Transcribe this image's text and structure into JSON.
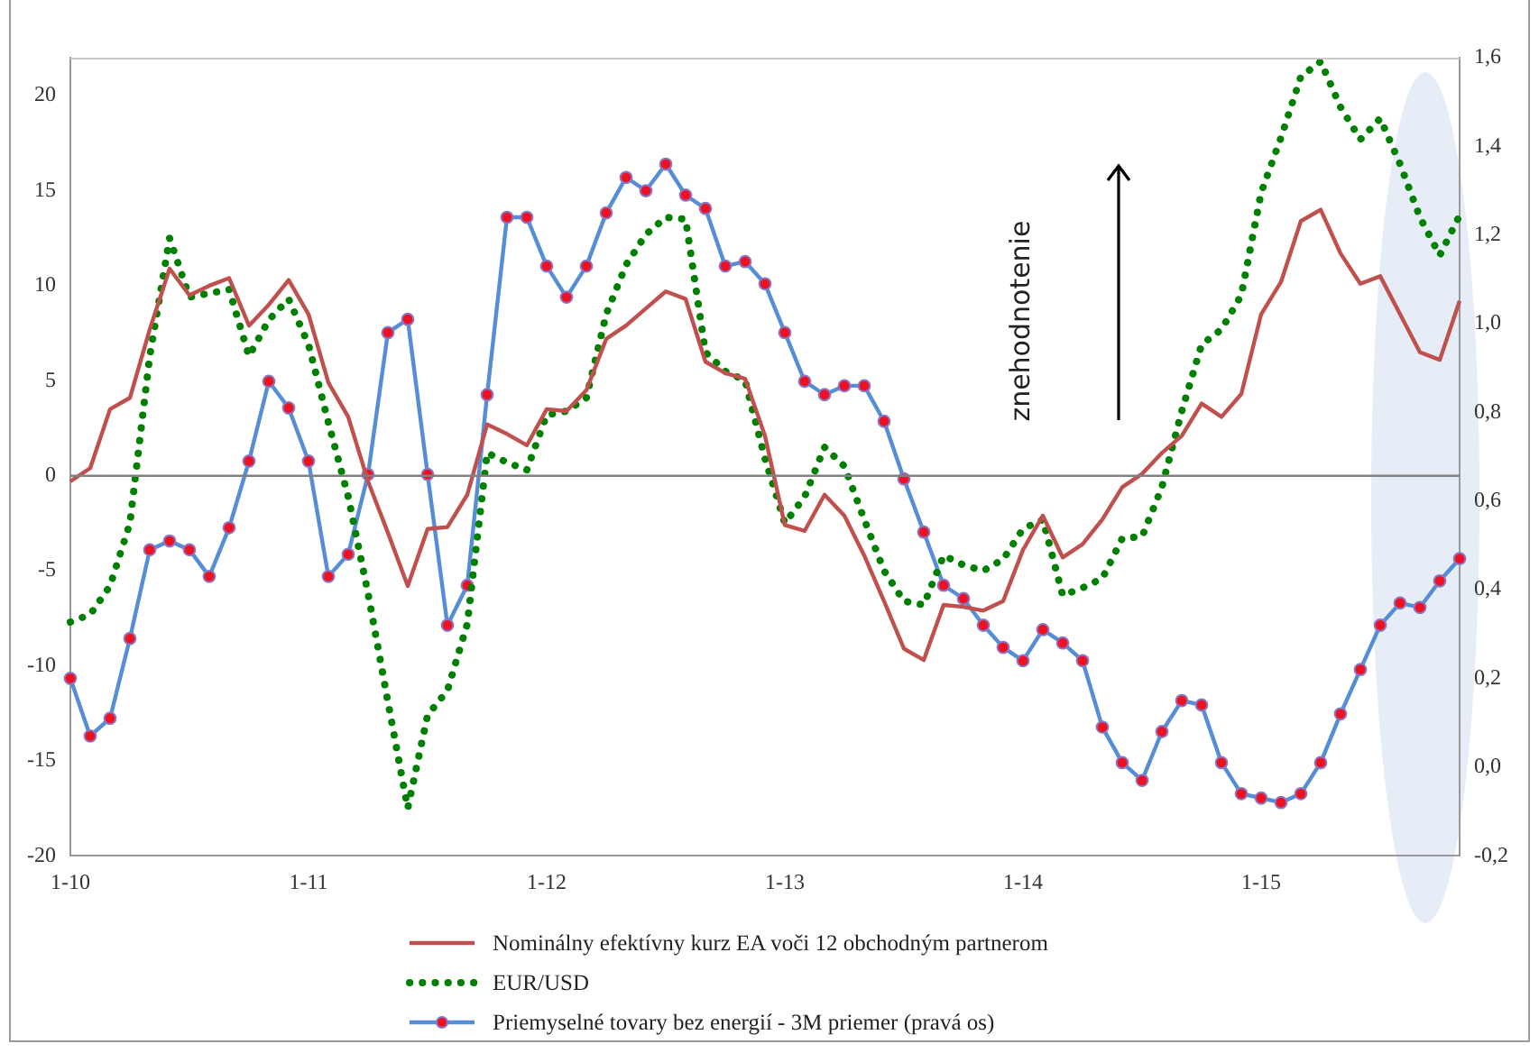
{
  "chart_data": {
    "type": "line",
    "categories": [
      "1-10",
      null,
      null,
      null,
      null,
      null,
      null,
      null,
      null,
      null,
      null,
      null,
      "1-11",
      null,
      null,
      null,
      null,
      null,
      null,
      null,
      null,
      null,
      null,
      null,
      "1-12",
      null,
      null,
      null,
      null,
      null,
      null,
      null,
      null,
      null,
      null,
      null,
      "1-13",
      null,
      null,
      null,
      null,
      null,
      null,
      null,
      null,
      null,
      null,
      null,
      "1-14",
      null,
      null,
      null,
      null,
      null,
      null,
      null,
      null,
      null,
      null,
      null,
      "1-15",
      null,
      null,
      null,
      null,
      null,
      null,
      null,
      null,
      null,
      null
    ],
    "series": [
      {
        "name": "Nominálny efektívny kurz EA voči 12 obchodným partnerom",
        "color": "#c0504d",
        "line_style": "solid",
        "marker": "none",
        "values": [
          -0.3,
          0.4,
          3.5,
          4.1,
          7.7,
          10.9,
          9.5,
          10.0,
          10.4,
          7.9,
          9.0,
          10.3,
          8.5,
          4.9,
          3.1,
          -0.3,
          -3.0,
          -5.8,
          -2.8,
          -2.7,
          -1.0,
          2.7,
          2.2,
          1.6,
          3.5,
          3.4,
          4.5,
          7.2,
          7.9,
          8.8,
          9.7,
          9.3,
          6.0,
          5.4,
          5.1,
          2.1,
          -2.6,
          -2.9,
          -1.0,
          -2.1,
          -4.2,
          -6.6,
          -9.1,
          -9.7,
          -6.8,
          -6.9,
          -7.1,
          -6.6,
          -3.9,
          -2.1,
          -4.3,
          -3.6,
          -2.3,
          -0.6,
          0.1,
          1.2,
          2.1,
          3.8,
          3.1,
          4.3,
          8.5,
          10.2,
          13.4,
          14.0,
          11.7,
          10.1,
          10.5,
          8.5,
          6.5,
          6.1,
          9.2
        ]
      },
      {
        "name": "EUR/USD",
        "color": "#008000",
        "line_style": "dotted",
        "marker": "none",
        "values": [
          -7.7,
          -7.3,
          -5.8,
          -2.5,
          6.3,
          12.5,
          9.4,
          9.6,
          9.8,
          6.3,
          8.2,
          9.3,
          6.9,
          2.8,
          -1.1,
          -6.2,
          -11.9,
          -17.5,
          -12.6,
          -11.3,
          -7.8,
          1.2,
          0.7,
          0.3,
          3.2,
          3.4,
          4.1,
          8.5,
          11.1,
          12.7,
          13.6,
          13.5,
          6.5,
          5.5,
          5.0,
          0.9,
          -2.5,
          -1.1,
          1.5,
          0.5,
          -2.3,
          -5.0,
          -6.6,
          -6.8,
          -4.2,
          -4.7,
          -5.0,
          -4.4,
          -2.8,
          -2.3,
          -6.3,
          -5.9,
          -5.4,
          -3.3,
          -3.2,
          -0.6,
          3.4,
          6.9,
          7.7,
          9.5,
          14.9,
          17.8,
          21.0,
          21.8,
          19.4,
          17.7,
          18.8,
          16.4,
          13.6,
          11.6,
          13.7
        ]
      },
      {
        "name": "Priemyselné tovary bez energií - 3M priemer (pravá os)",
        "color": "#558ed5",
        "axis": "y2",
        "line_style": "solid",
        "marker": "circle",
        "values": [
          0.2,
          0.07,
          0.11,
          0.29,
          0.49,
          0.51,
          0.49,
          0.43,
          0.54,
          0.69,
          0.87,
          0.81,
          0.69,
          0.43,
          0.48,
          0.66,
          0.98,
          1.01,
          0.66,
          0.32,
          0.41,
          0.84,
          1.24,
          1.24,
          1.13,
          1.06,
          1.13,
          1.25,
          1.33,
          1.3,
          1.36,
          1.29,
          1.26,
          1.13,
          1.14,
          1.09,
          0.98,
          0.87,
          0.84,
          0.86,
          0.86,
          0.78,
          0.65,
          0.53,
          0.41,
          0.38,
          0.32,
          0.27,
          0.24,
          0.31,
          0.28,
          0.24,
          0.09,
          0.01,
          -0.03,
          0.08,
          0.15,
          0.14,
          0.01,
          -0.06,
          -0.07,
          -0.08,
          -0.06,
          0.01,
          0.12,
          0.22,
          0.32,
          0.37,
          0.36,
          0.42,
          0.47
        ]
      }
    ],
    "ylim": [
      -20,
      22
    ],
    "yticks": [
      -20,
      -15,
      -10,
      -5,
      0,
      5,
      10,
      15,
      20
    ],
    "y2lim": [
      -0.2,
      1.6
    ],
    "y2ticks": [
      {
        "value": -0.2,
        "label": "-0,2"
      },
      {
        "value": 0,
        "label": "0,0"
      },
      {
        "value": 0.2,
        "label": "0,2"
      },
      {
        "value": 0.4,
        "label": "0,4"
      },
      {
        "value": 0.6,
        "label": "0,6"
      },
      {
        "value": 0.8,
        "label": "0,8"
      },
      {
        "value": 1.0,
        "label": "1,0"
      },
      {
        "value": 1.2,
        "label": "1,2"
      },
      {
        "value": 1.4,
        "label": "1,4"
      },
      {
        "value": 1.6,
        "label": "1,6"
      }
    ],
    "ref_lines": [
      {
        "axis": "y",
        "value": 0,
        "color": "#808080"
      }
    ],
    "annotations": [
      "znehodnotenie"
    ],
    "grid": false,
    "legend": "bottom"
  }
}
